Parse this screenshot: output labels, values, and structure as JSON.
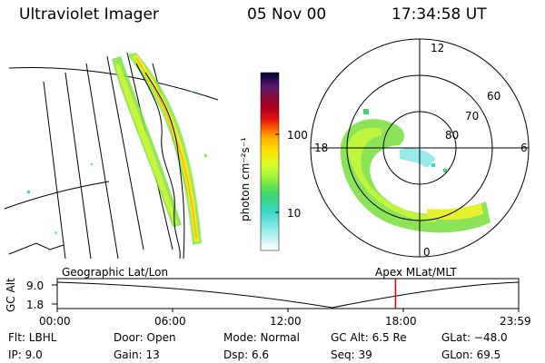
{
  "header": {
    "instrument": "Ultraviolet Imager",
    "date": "05 Nov 00",
    "time": "17:34:58 UT"
  },
  "colorbar": {
    "unit_label": "photon cm⁻²s⁻¹",
    "ticks": [
      "100",
      "10"
    ],
    "colors": [
      "#000030",
      "#3a0f55",
      "#5a1a6e",
      "#8a0a3a",
      "#b3001a",
      "#e01010",
      "#ff6a00",
      "#ffb000",
      "#ffe000",
      "#d8ff2a",
      "#90ef3a",
      "#3ed66a",
      "#38d6c8",
      "#7fe6e6",
      "#c8f2f2",
      "#ffffff"
    ]
  },
  "polar_plot": {
    "mlt_labels": [
      "12",
      "18",
      "6",
      "0"
    ],
    "mlat_labels": [
      "60",
      "70",
      "80"
    ]
  },
  "timeline": {
    "left_label": "Geographic Lat/Lon",
    "right_label": "Apex MLat/MLT",
    "y_axis_label": "GC Alt",
    "y_ticks": [
      "9.0",
      "1.8"
    ],
    "x_ticks": [
      "00:00",
      "06:00",
      "12:00",
      "18:00",
      "23:59"
    ],
    "marker_time": "17:35",
    "marker_color": "#cc0000"
  },
  "footer": {
    "filter": "Flt: LBHL",
    "ip": "IP:  9.0",
    "door": "Door: Open",
    "gain": "Gain: 13",
    "mode": "Mode: Normal",
    "dsp": "Dsp:     6.6",
    "gc_alt": "GC Alt: 6.5 Re",
    "seq": "Seq: 39",
    "glat": "GLat: −48.0",
    "glon": "GLon:  69.5"
  }
}
